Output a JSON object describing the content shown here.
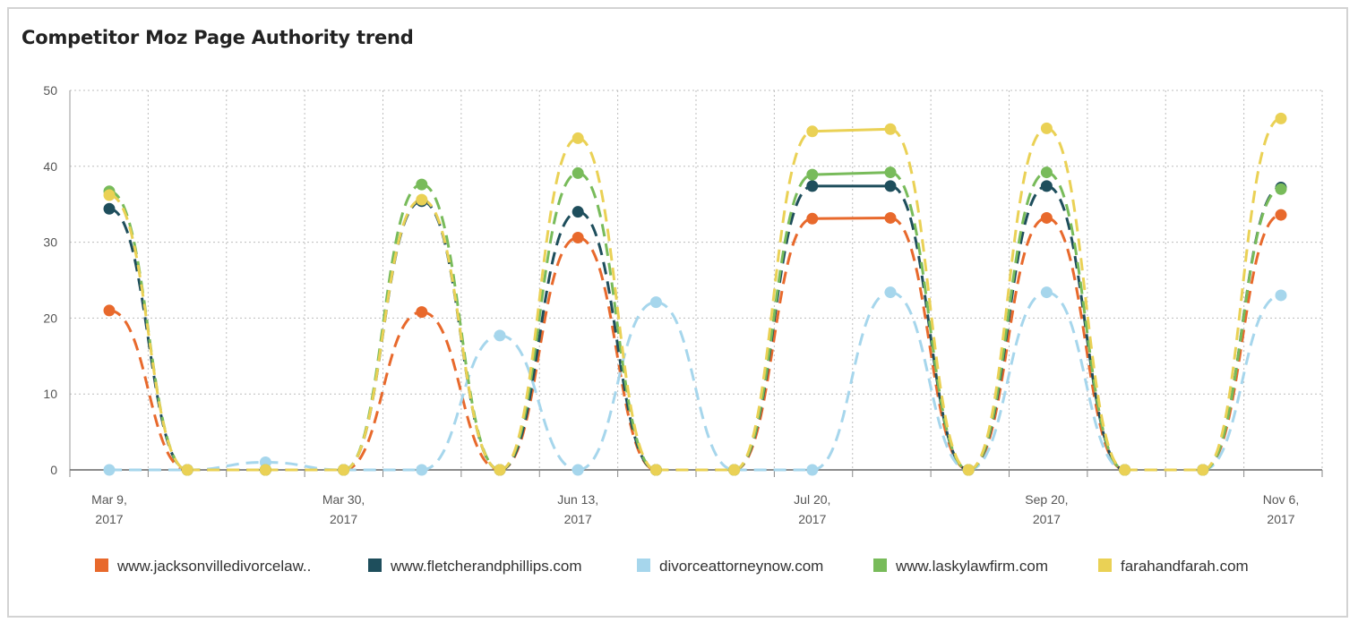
{
  "title": "Competitor Moz Page Authority trend",
  "chart_data": {
    "type": "line",
    "title": "Competitor Moz Page Authority trend",
    "ylim": [
      0,
      50
    ],
    "yticks": [
      0,
      10,
      20,
      30,
      40,
      50
    ],
    "grid": true,
    "legend_position": "bottom",
    "x_tick_labels": [
      {
        "index": 0,
        "lines": [
          "Mar 9,",
          "2017"
        ]
      },
      {
        "index": 3,
        "lines": [
          "Mar 30,",
          "2017"
        ]
      },
      {
        "index": 6,
        "lines": [
          "Jun 13,",
          "2017"
        ]
      },
      {
        "index": 9,
        "lines": [
          "Jul 20,",
          "2017"
        ]
      },
      {
        "index": 12,
        "lines": [
          "Sep 20,",
          "2017"
        ]
      },
      {
        "index": 15,
        "lines": [
          "Nov 6,",
          "2017"
        ]
      }
    ],
    "point_count": 16,
    "series": [
      {
        "name": "www.jacksonvilledivorcelaw..",
        "color": "#e8692c",
        "values": [
          21,
          0,
          0,
          0,
          20.8,
          0,
          30.6,
          0,
          0,
          33.1,
          33.2,
          0,
          33.2,
          0,
          0,
          33.6
        ]
      },
      {
        "name": "www.fletcherandphillips.com",
        "color": "#1e4e5c",
        "values": [
          34.4,
          0,
          0,
          0,
          35.4,
          0,
          34,
          0,
          0,
          37.4,
          37.4,
          0,
          37.4,
          0,
          0,
          37.2
        ]
      },
      {
        "name": "divorceattorneynow.com",
        "color": "#a6d6ec",
        "values": [
          0,
          0,
          1,
          0,
          0,
          17.7,
          0,
          22.1,
          0,
          0,
          23.4,
          0,
          23.4,
          0,
          0,
          23
        ]
      },
      {
        "name": "www.laskylawfirm.com",
        "color": "#78bb5a",
        "values": [
          36.7,
          0,
          0,
          0,
          37.6,
          0,
          39.1,
          0,
          0,
          38.9,
          39.2,
          0,
          39.2,
          0,
          0,
          37
        ]
      },
      {
        "name": "farahandfarah.com",
        "color": "#ead155",
        "values": [
          36.2,
          0,
          0,
          0,
          35.6,
          0,
          43.7,
          0,
          0,
          44.6,
          44.9,
          0,
          45,
          0,
          0,
          46.3
        ]
      }
    ]
  }
}
